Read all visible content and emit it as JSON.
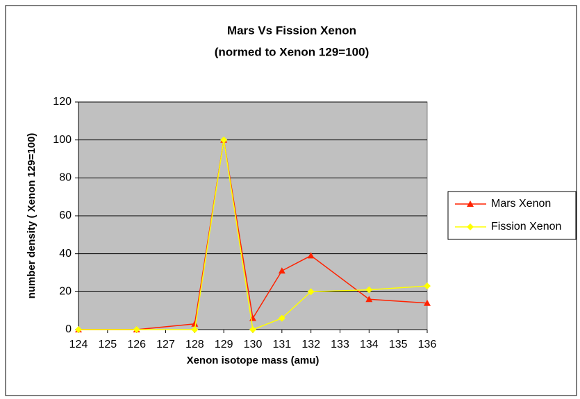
{
  "chart_data": {
    "type": "line",
    "title_lines": [
      "Mars Vs Fission Xenon",
      "(normed to Xenon 129=100)"
    ],
    "x_label": "Xenon isotope mass (amu)",
    "y_label": "number density ( Xenon 129=100)",
    "x": [
      124,
      126,
      128,
      129,
      130,
      131,
      132,
      134,
      136
    ],
    "series": [
      {
        "name": "Mars Xenon",
        "color": "#ff2200",
        "marker": "triangle",
        "values": [
          0,
          0,
          3,
          100,
          6,
          31,
          39,
          16,
          14
        ]
      },
      {
        "name": "Fission Xenon",
        "color": "#ffff00",
        "marker": "diamond",
        "values": [
          0,
          0,
          0,
          100,
          0,
          6,
          20,
          21,
          23
        ]
      }
    ],
    "xlim": [
      124,
      136
    ],
    "xticks": [
      124,
      125,
      126,
      127,
      128,
      129,
      130,
      131,
      132,
      133,
      134,
      135,
      136
    ],
    "ylim": [
      0,
      120
    ],
    "yticks": [
      0,
      20,
      40,
      60,
      80,
      100,
      120
    ],
    "grid": true,
    "plot_background": "#c0c0c0",
    "legend": "right"
  }
}
